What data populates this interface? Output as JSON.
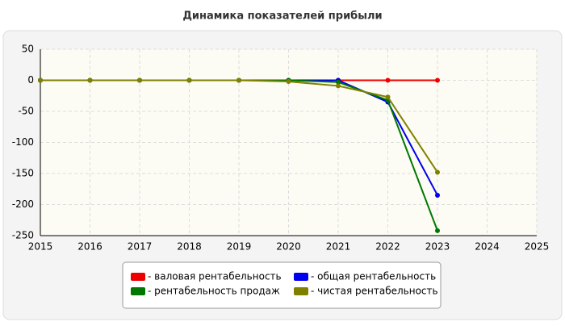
{
  "chart_data": {
    "type": "line",
    "title": "Динамика показателей прибыли",
    "x": [
      2015,
      2016,
      2017,
      2018,
      2019,
      2020,
      2021,
      2022,
      2023
    ],
    "series": [
      {
        "name": "- валовая рентабельность",
        "color": "#ee0000",
        "values": [
          0,
          0,
          0,
          0,
          0,
          0,
          0,
          0,
          0
        ]
      },
      {
        "name": "- общая рентабельность",
        "color": "#0000ee",
        "values": [
          0,
          0,
          0,
          0,
          0,
          0,
          0,
          -35,
          -185
        ]
      },
      {
        "name": "- рентабельность продаж",
        "color": "#007700",
        "values": [
          0,
          0,
          0,
          0,
          0,
          0,
          -3,
          -32,
          -242
        ]
      },
      {
        "name": "- чистая рентабельность",
        "color": "#808000",
        "values": [
          0,
          0,
          0,
          0,
          0,
          -2,
          -9,
          -27,
          -148
        ]
      }
    ],
    "xlim": [
      2015,
      2025
    ],
    "xticks": [
      2015,
      2016,
      2017,
      2018,
      2019,
      2020,
      2021,
      2022,
      2023,
      2024,
      2025
    ],
    "ylim": [
      -250,
      50
    ],
    "yticks": [
      50,
      0,
      -50,
      -100,
      -150,
      -200,
      -250
    ],
    "grid": true,
    "legend": "bottom"
  }
}
